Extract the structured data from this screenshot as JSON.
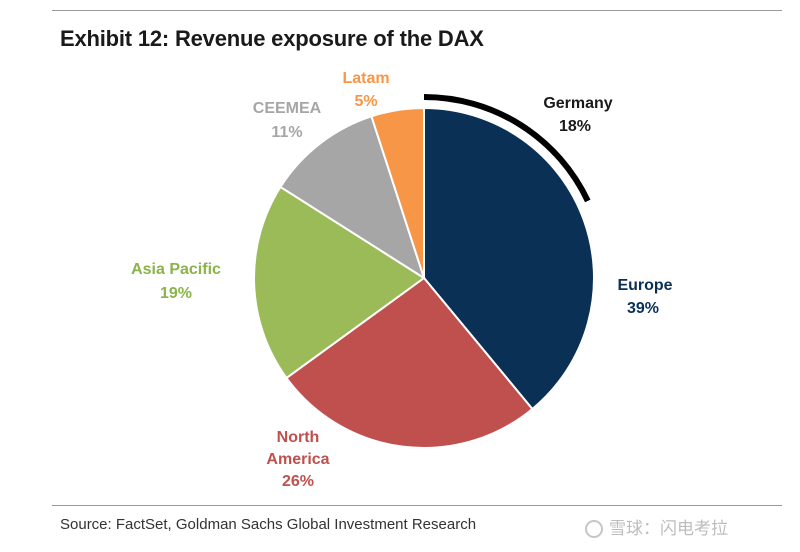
{
  "title": "Exhibit 12: Revenue exposure of the DAX",
  "source": "Source: FactSet, Goldman Sachs Global Investment Research",
  "watermark": "雪球：闪电考拉",
  "chart_data": {
    "type": "pie",
    "title": "Exhibit 12: Revenue exposure of the DAX",
    "unit": "%",
    "start": "12 o'clock",
    "direction": "clockwise",
    "slices": [
      {
        "key": "europe",
        "label": "Europe",
        "value": 39,
        "display": "39%",
        "color": "#0b3056"
      },
      {
        "key": "north-america",
        "label": "North America",
        "value": 26,
        "display": "26%",
        "color": "#c0504d"
      },
      {
        "key": "asia-pacific",
        "label": "Asia Pacific",
        "value": 19,
        "display": "19%",
        "color": "#9bbb59"
      },
      {
        "key": "ceemea",
        "label": "CEEMEA",
        "value": 11,
        "display": "11%",
        "color": "#a6a6a6"
      },
      {
        "key": "latam",
        "label": "Latam",
        "value": 5,
        "display": "5%",
        "color": "#f79646"
      }
    ],
    "annotation": {
      "label": "Germany",
      "value": 18,
      "display": "18%",
      "style": "black arc along the outer edge of the Europe slice"
    }
  }
}
